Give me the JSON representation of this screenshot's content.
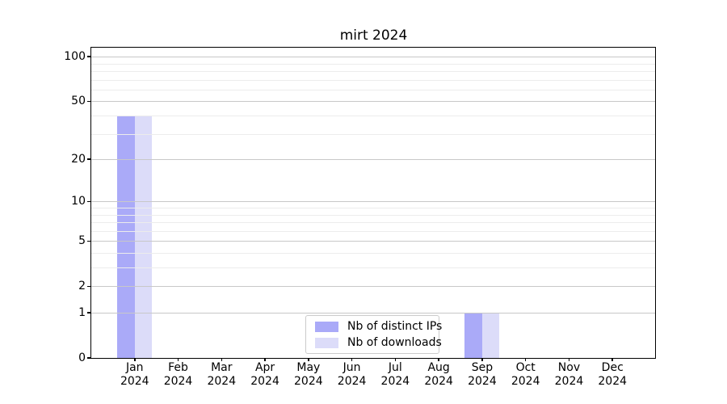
{
  "chart_data": {
    "type": "bar",
    "title": "mirt 2024",
    "categories": [
      "Jan 2024",
      "Feb 2024",
      "Mar 2024",
      "Apr 2024",
      "May 2024",
      "Jun 2024",
      "Jul 2024",
      "Aug 2024",
      "Sep 2024",
      "Oct 2024",
      "Nov 2024",
      "Dec 2024"
    ],
    "series": [
      {
        "name": "Nb of distinct IPs",
        "color": "#aaaaf8",
        "values": [
          40,
          0,
          0,
          0,
          0,
          0,
          0,
          0,
          1,
          0,
          0,
          0
        ]
      },
      {
        "name": "Nb of downloads",
        "color": "#dcdcf9",
        "values": [
          40,
          0,
          0,
          0,
          0,
          0,
          0,
          0,
          1,
          0,
          0,
          0
        ]
      }
    ],
    "xlabel": "",
    "ylabel": "",
    "yscale": "log1p",
    "ylim": [
      0,
      115
    ],
    "ytick_labels": [
      0,
      1,
      2,
      5,
      10,
      20,
      50,
      100
    ],
    "minor_gridlines": [
      3,
      4,
      6,
      7,
      8,
      9,
      30,
      40,
      60,
      70,
      80,
      90
    ],
    "grid": "on",
    "legend_position": "lower center",
    "colors": {
      "major_grid": "#c8c8c8",
      "minor_grid": "#ececec",
      "axis": "#000000",
      "background": "#ffffff"
    }
  }
}
